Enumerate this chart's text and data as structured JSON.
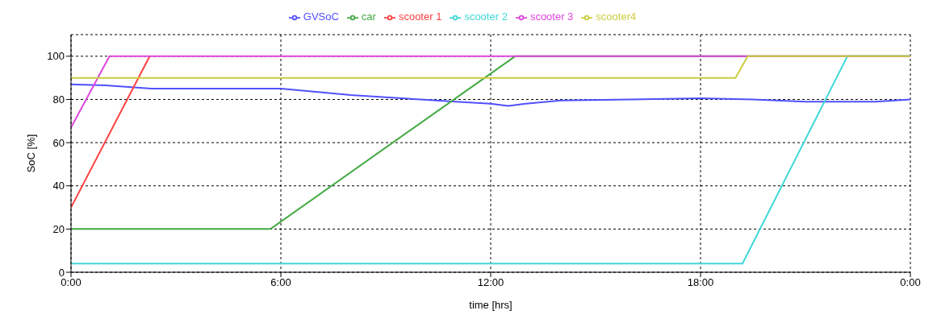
{
  "chart_data": {
    "type": "line",
    "xlabel": "time [hrs]",
    "ylabel": "SoC [%]",
    "xlim": [
      0,
      24
    ],
    "xticks": [
      {
        "value": 0,
        "label": "0:00"
      },
      {
        "value": 6,
        "label": "6:00"
      },
      {
        "value": 12,
        "label": "12:00"
      },
      {
        "value": 18,
        "label": "18:00"
      },
      {
        "value": 24,
        "label": "0:00"
      }
    ],
    "ylim": [
      0,
      110
    ],
    "yticks": [
      0,
      20,
      40,
      60,
      80,
      100
    ],
    "grid": true,
    "legend": "top",
    "line_style": "solid",
    "marker": "none",
    "series": [
      {
        "name": "GVSoC",
        "color": "#5050ff",
        "x": [
          0,
          1,
          2.3,
          4,
          6,
          7,
          8,
          10,
          11,
          12,
          12.5,
          13,
          14,
          16,
          18,
          19.5,
          21,
          23,
          24
        ],
        "values": [
          87,
          86.5,
          85,
          85,
          85,
          83.5,
          82,
          80,
          79,
          78,
          77,
          78,
          79.5,
          80,
          80.5,
          80,
          79,
          79,
          80
        ]
      },
      {
        "name": "car",
        "color": "#44aa44",
        "x": [
          0,
          5.7,
          12.7,
          24
        ],
        "values": [
          20,
          20,
          100,
          100
        ]
      },
      {
        "name": "scooter 1",
        "color": "#ff4040",
        "x": [
          0,
          2.25
        ],
        "values": [
          30,
          100
        ]
      },
      {
        "name": "scooter 2",
        "color": "#40d8d8",
        "x": [
          0,
          19.2,
          22.2,
          24
        ],
        "values": [
          4,
          4,
          100,
          100
        ]
      },
      {
        "name": "scooter 3",
        "color": "#dd44dd",
        "x": [
          0,
          1.1,
          24
        ],
        "values": [
          67,
          100,
          100
        ]
      },
      {
        "name": "scooter4",
        "color": "#cccc40",
        "x": [
          0,
          19,
          19.35,
          24
        ],
        "values": [
          90,
          90,
          100,
          100
        ]
      }
    ]
  }
}
